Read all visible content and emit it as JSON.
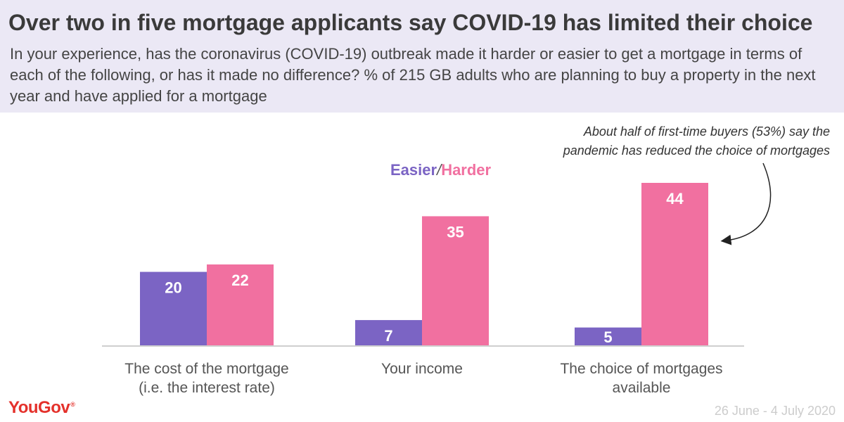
{
  "header": {
    "title": "Over two in five mortgage applicants say COVID-19 has limited their choice",
    "subtitle": "In your experience, has the coronavirus (COVID-19) outbreak made it harder or easier to get a mortgage in terms of each of the following, or has it made no difference? % of 215 GB adults who are planning to buy a property in the next year and have applied for a mortgage"
  },
  "legend": {
    "easier_label": "Easier",
    "separator": "/",
    "harder_label": "Harder"
  },
  "annotation": {
    "line1": "About half of first-time buyers (53%) say the",
    "line2": "pandemic has reduced the choice of mortgages"
  },
  "footer": {
    "logo_text": "YouGov",
    "logo_mark": "®",
    "date_range": "26 June - 4 July 2020"
  },
  "colors": {
    "easier": "#7b64c4",
    "harder": "#f170a0",
    "header_bg": "#ebe8f5",
    "brand": "#e4312b"
  },
  "chart_data": {
    "type": "bar",
    "categories": [
      [
        "The cost of the mortgage",
        "(i.e. the interest rate)"
      ],
      [
        "Your income"
      ],
      [
        "The choice of mortgages",
        "available"
      ]
    ],
    "series": [
      {
        "name": "Easier",
        "values": [
          20,
          7,
          5
        ]
      },
      {
        "name": "Harder",
        "values": [
          22,
          35,
          44
        ]
      }
    ],
    "ylim": [
      0,
      44
    ],
    "grid": false,
    "legend_position": "top-center"
  }
}
